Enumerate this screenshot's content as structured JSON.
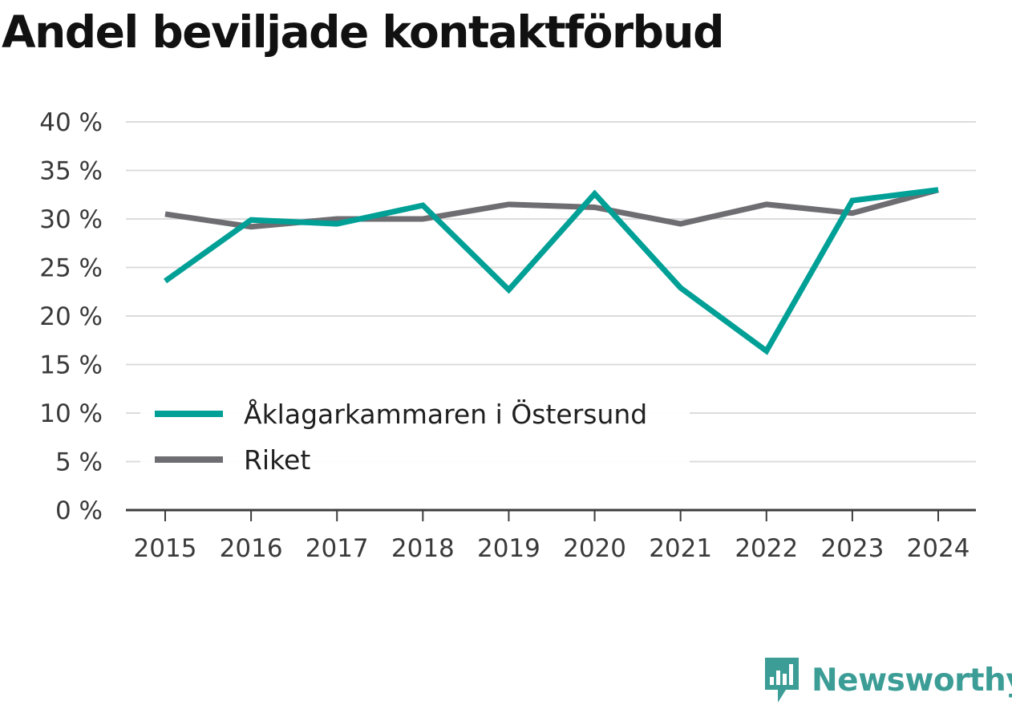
{
  "chart_data": {
    "type": "line",
    "title": "Andel beviljade kontaktförbud",
    "xlabel": "",
    "ylabel": "",
    "categories": [
      "2015",
      "2016",
      "2017",
      "2018",
      "2019",
      "2020",
      "2021",
      "2022",
      "2023",
      "2024"
    ],
    "ylim": [
      0,
      40
    ],
    "yticks": [
      0,
      5,
      10,
      15,
      20,
      25,
      30,
      35,
      40
    ],
    "ytick_labels": [
      "0 %",
      "5 %",
      "10 %",
      "15 %",
      "20 %",
      "25 %",
      "30 %",
      "35 %",
      "40 %"
    ],
    "grid": true,
    "legend_position": "lower-left",
    "series": [
      {
        "name": "Åklagarkammaren i Östersund",
        "color": "#00a096",
        "values": [
          23.6,
          29.9,
          29.5,
          31.4,
          22.7,
          32.6,
          22.9,
          16.4,
          31.9,
          33.0
        ]
      },
      {
        "name": "Riket",
        "color": "#6e6d72",
        "values": [
          30.5,
          29.2,
          30.0,
          30.0,
          31.5,
          31.2,
          29.5,
          31.5,
          30.6,
          33.0
        ]
      }
    ]
  },
  "logo": {
    "text": "Newsworthy",
    "color": "#3c9d96",
    "icon": "newsworthy-logo-icon"
  }
}
